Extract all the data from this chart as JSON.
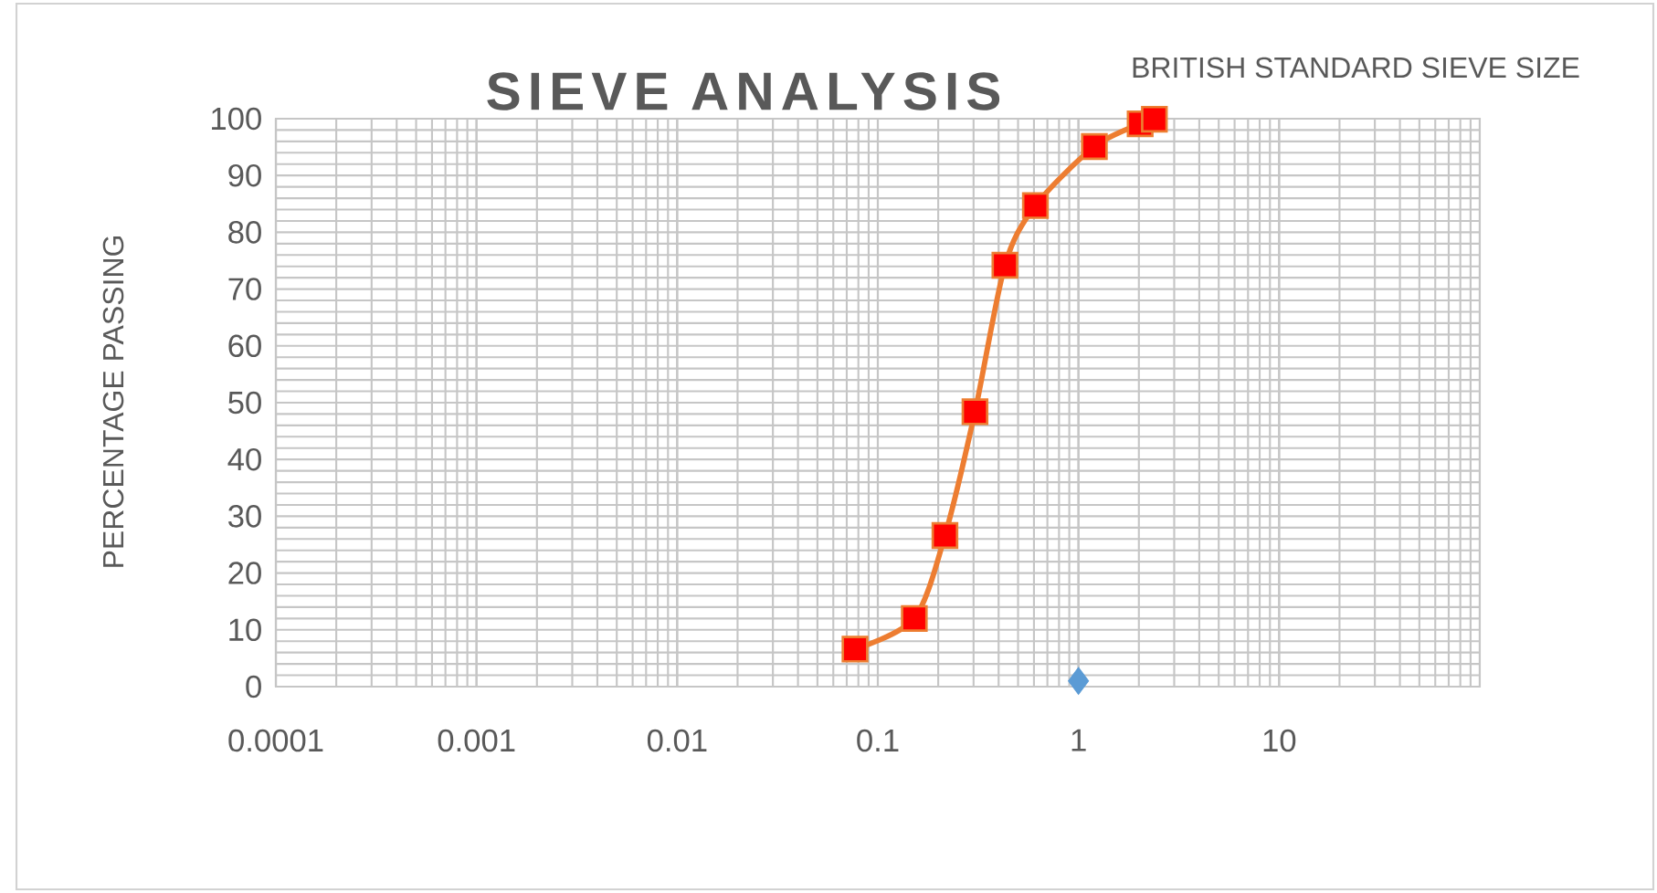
{
  "chart_data": {
    "type": "line",
    "title": "SIEVE ANALYSIS",
    "xlabel": "BRITISH STANDARD SIEVE SIZE",
    "ylabel": "PERCENTAGE PASSING",
    "log": "x",
    "xlim": [
      0.0001,
      100
    ],
    "ylim": [
      0,
      100
    ],
    "xticks": [
      0.0001,
      0.001,
      0.01,
      0.1,
      1,
      10,
      {
        "value": 100,
        "label": null
      }
    ],
    "yticks": [
      0,
      10,
      20,
      30,
      40,
      50,
      60,
      70,
      80,
      90,
      100
    ],
    "grid": true,
    "series": [
      {
        "color": "#ed7d31",
        "colors": [
          "#ff0000",
          "#ff0000",
          "#ff0000",
          "#ff0000",
          "#ff0000",
          "#ff0000",
          "#ff0000",
          "#ff0000",
          "#ff0000"
        ],
        "marker": "square",
        "line_style": "solid",
        "x": [
          0.077,
          0.152,
          0.216,
          0.305,
          0.43,
          0.61,
          1.2,
          2.03,
          2.39
        ],
        "values": [
          6.6,
          12,
          26.6,
          48.4,
          74.2,
          84.7,
          95.1,
          99.1,
          99.9
        ]
      },
      {
        "type": "scatter",
        "color": "#5b9bd5",
        "marker": "diamond",
        "x": [
          1
        ],
        "values": [
          1
        ]
      }
    ]
  }
}
